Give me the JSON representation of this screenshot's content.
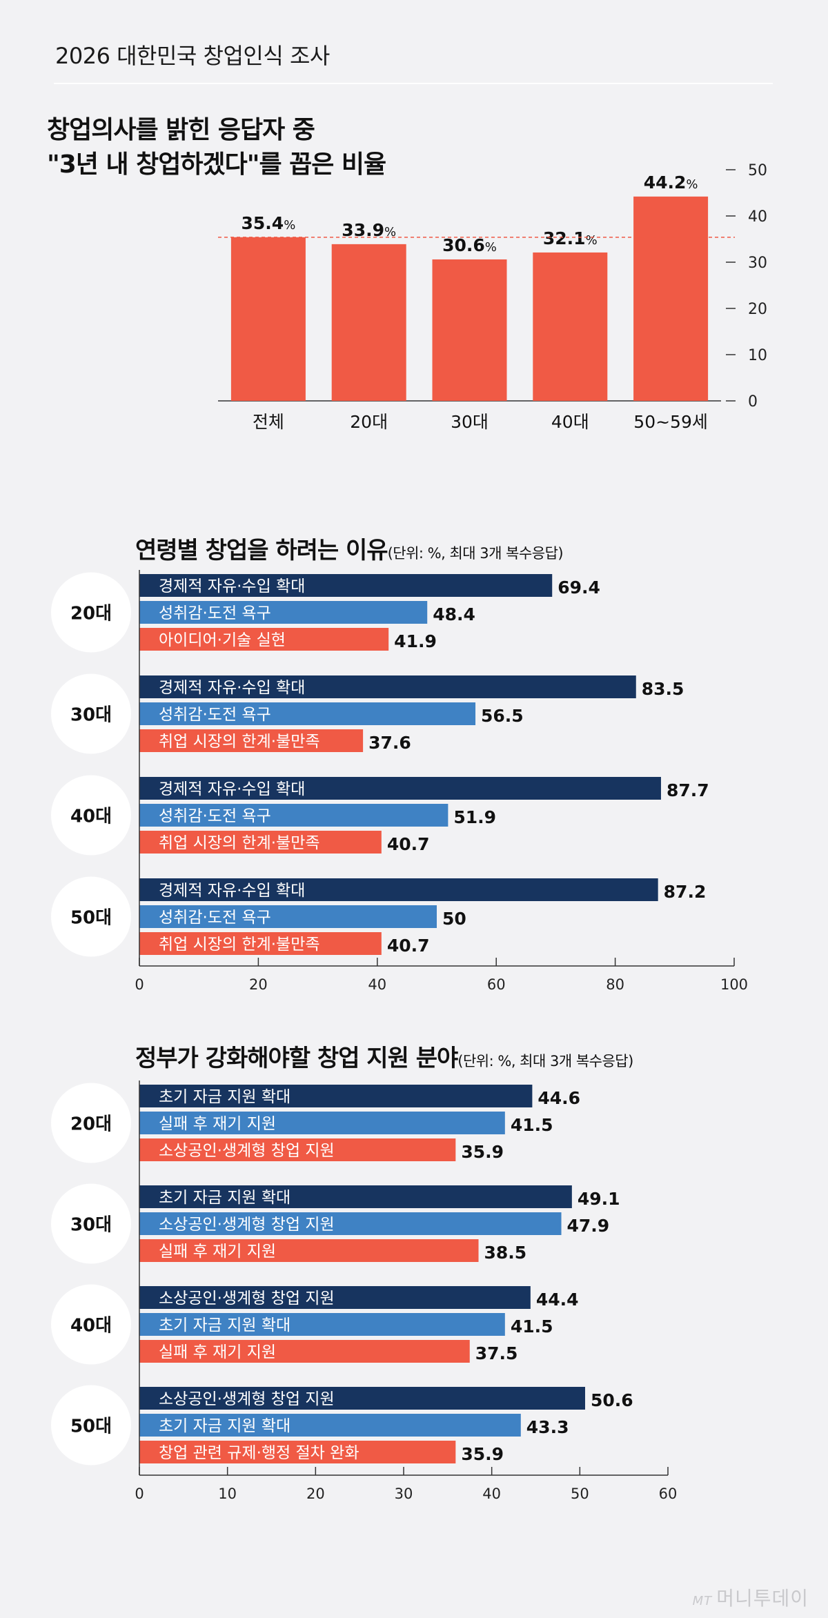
{
  "header": {
    "title": "2026 대한민국 창업인식 조사"
  },
  "watermark": {
    "mark": "MT",
    "text": "머니투데이"
  },
  "colors": {
    "bar_red": "#f05a45",
    "navy": "#17345f",
    "blue": "#3f82c4",
    "red": "#f05a45",
    "ref_line": "#f05a45"
  },
  "chart_data": [
    {
      "type": "bar",
      "title_lines": [
        "창업의사를 밝힌 응답자 중",
        "\"3년 내 창업하겠다\"를 꼽은 비율"
      ],
      "categories": [
        "전체",
        "20대",
        "30대",
        "40대",
        "50~59세"
      ],
      "values": [
        35.4,
        33.9,
        30.6,
        32.1,
        44.2
      ],
      "value_labels": [
        "35.4",
        "33.9",
        "30.6",
        "32.1",
        "44.2"
      ],
      "value_suffix": "%",
      "ylim": [
        0,
        50
      ],
      "yticks": [
        0,
        10,
        20,
        30,
        40,
        50
      ],
      "reference_line": 35.4,
      "axis_side": "right"
    },
    {
      "type": "bar",
      "orientation": "horizontal",
      "title": "연령별 창업을 하려는 이유",
      "unit_note": "(단위: %, 최대 3개 복수응답)",
      "xlim": [
        0,
        100
      ],
      "xticks": [
        0,
        20,
        40,
        60,
        80,
        100
      ],
      "groups": [
        {
          "label": "20대",
          "bars": [
            {
              "label": "경제적 자유·수입 확대",
              "value": 69.4,
              "display": "69.4"
            },
            {
              "label": "성취감·도전 욕구",
              "value": 48.4,
              "display": "48.4"
            },
            {
              "label": "아이디어·기술 실현",
              "value": 41.9,
              "display": "41.9"
            }
          ]
        },
        {
          "label": "30대",
          "bars": [
            {
              "label": "경제적 자유·수입 확대",
              "value": 83.5,
              "display": "83.5"
            },
            {
              "label": "성취감·도전 욕구",
              "value": 56.5,
              "display": "56.5"
            },
            {
              "label": "취업 시장의 한계·불만족",
              "value": 37.6,
              "display": "37.6"
            }
          ]
        },
        {
          "label": "40대",
          "bars": [
            {
              "label": "경제적 자유·수입 확대",
              "value": 87.7,
              "display": "87.7"
            },
            {
              "label": "성취감·도전 욕구",
              "value": 51.9,
              "display": "51.9"
            },
            {
              "label": "취업 시장의 한계·불만족",
              "value": 40.7,
              "display": "40.7"
            }
          ]
        },
        {
          "label": "50대",
          "bars": [
            {
              "label": "경제적 자유·수입 확대",
              "value": 87.2,
              "display": "87.2"
            },
            {
              "label": "성취감·도전 욕구",
              "value": 50,
              "display": "50"
            },
            {
              "label": "취업 시장의 한계·불만족",
              "value": 40.7,
              "display": "40.7"
            }
          ]
        }
      ]
    },
    {
      "type": "bar",
      "orientation": "horizontal",
      "title": "정부가 강화해야할 창업 지원 분야",
      "unit_note": "(단위: %, 최대 3개 복수응답)",
      "xlim": [
        0,
        60
      ],
      "xticks": [
        0,
        10,
        20,
        30,
        40,
        50,
        60
      ],
      "groups": [
        {
          "label": "20대",
          "bars": [
            {
              "label": "초기 자금 지원 확대",
              "value": 44.6,
              "display": "44.6"
            },
            {
              "label": "실패 후 재기 지원",
              "value": 41.5,
              "display": "41.5"
            },
            {
              "label": "소상공인·생계형 창업 지원",
              "value": 35.9,
              "display": "35.9"
            }
          ]
        },
        {
          "label": "30대",
          "bars": [
            {
              "label": "초기 자금 지원 확대",
              "value": 49.1,
              "display": "49.1"
            },
            {
              "label": "소상공인·생계형 창업 지원",
              "value": 47.9,
              "display": "47.9"
            },
            {
              "label": "실패 후 재기 지원",
              "value": 38.5,
              "display": "38.5"
            }
          ]
        },
        {
          "label": "40대",
          "bars": [
            {
              "label": "소상공인·생계형 창업 지원",
              "value": 44.4,
              "display": "44.4"
            },
            {
              "label": "초기 자금 지원 확대",
              "value": 41.5,
              "display": "41.5"
            },
            {
              "label": "실패 후 재기 지원",
              "value": 37.5,
              "display": "37.5"
            }
          ]
        },
        {
          "label": "50대",
          "bars": [
            {
              "label": "소상공인·생계형 창업 지원",
              "value": 50.6,
              "display": "50.6"
            },
            {
              "label": "초기 자금 지원 확대",
              "value": 43.3,
              "display": "43.3"
            },
            {
              "label": "창업 관련 규제·행정 절차 완화",
              "value": 35.9,
              "display": "35.9"
            }
          ]
        }
      ]
    }
  ]
}
